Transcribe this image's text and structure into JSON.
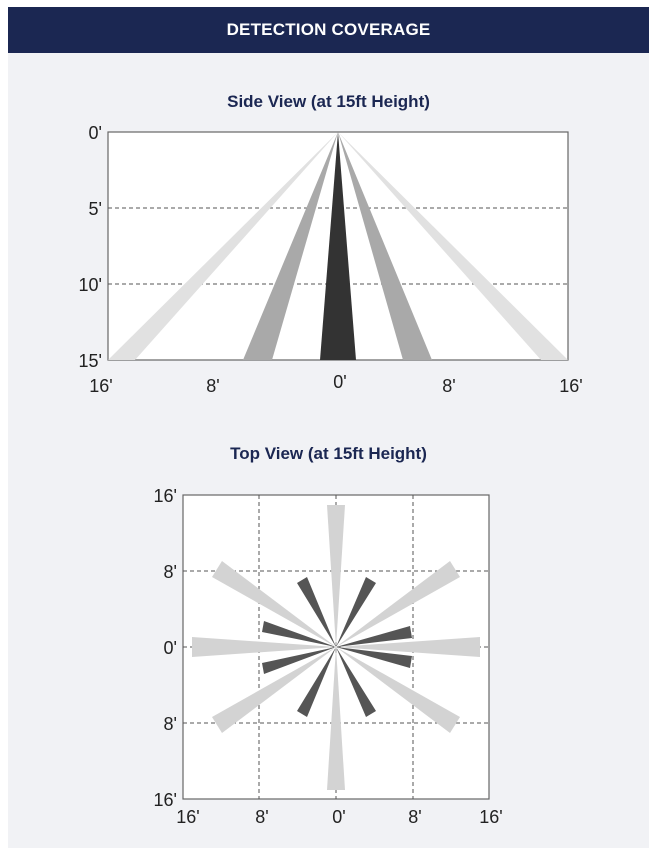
{
  "header": {
    "title": "DETECTION COVERAGE"
  },
  "side_view": {
    "title": "Side View (at 15ft Height)",
    "y_ticks": [
      "0'",
      "5'",
      "10'",
      "15'"
    ],
    "x_ticks": [
      "16'",
      "8'",
      "0'",
      "8'",
      "16'"
    ]
  },
  "top_view": {
    "title": "Top View (at 15ft Height)",
    "y_ticks": [
      "16'",
      "8'",
      "0'",
      "8'",
      "16'"
    ],
    "x_ticks": [
      "16'",
      "8'",
      "0'",
      "8'",
      "16'"
    ]
  },
  "colors": {
    "header_bg": "#1b2752",
    "title_text": "#1b2752",
    "panel_bg": "#f1f2f5",
    "beam_light": "#e1e1e1",
    "beam_mid": "#a9a9a9",
    "beam_dark": "#333333",
    "star_light": "#d3d3d3",
    "star_dark": "#555555"
  }
}
